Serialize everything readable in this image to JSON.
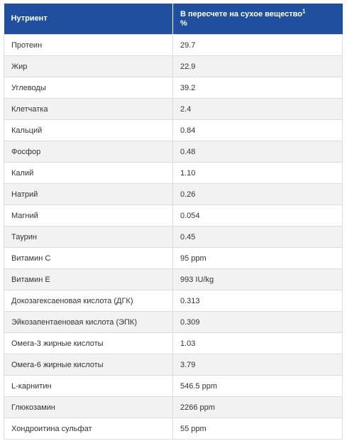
{
  "table": {
    "header": {
      "nutrient": "Нутриент",
      "basis": "В пересчете на сухое вещество",
      "footnote": "1",
      "unit": "%"
    },
    "rows": [
      [
        "Протеин",
        "29.7"
      ],
      [
        "Жир",
        "22.9"
      ],
      [
        "Углеводы",
        "39.2"
      ],
      [
        "Клетчатка",
        "2.4"
      ],
      [
        "Кальций",
        "0.84"
      ],
      [
        "Фосфор",
        "0.48"
      ],
      [
        "Калий",
        "1.10"
      ],
      [
        "Натрий",
        "0.26"
      ],
      [
        "Магний",
        "0.054"
      ],
      [
        "Таурин",
        "0.45"
      ],
      [
        "Витамин C",
        "95 ppm"
      ],
      [
        "Витамин E",
        "993 IU/kg"
      ],
      [
        "Докозагексаеновая кислота (ДГК)",
        "0.313"
      ],
      [
        "Эйкозапентаеновая кислота (ЭПК)",
        "0.309"
      ],
      [
        "Омега-3 жирные кислоты",
        "1.03"
      ],
      [
        "Омега-6 жирные кислоты",
        "3.79"
      ],
      [
        "L-карнитин",
        "546.5 ppm"
      ],
      [
        "Глюкозамин",
        "2266 ppm"
      ],
      [
        "Хондроитина сульфат",
        "55 ppm"
      ]
    ]
  }
}
